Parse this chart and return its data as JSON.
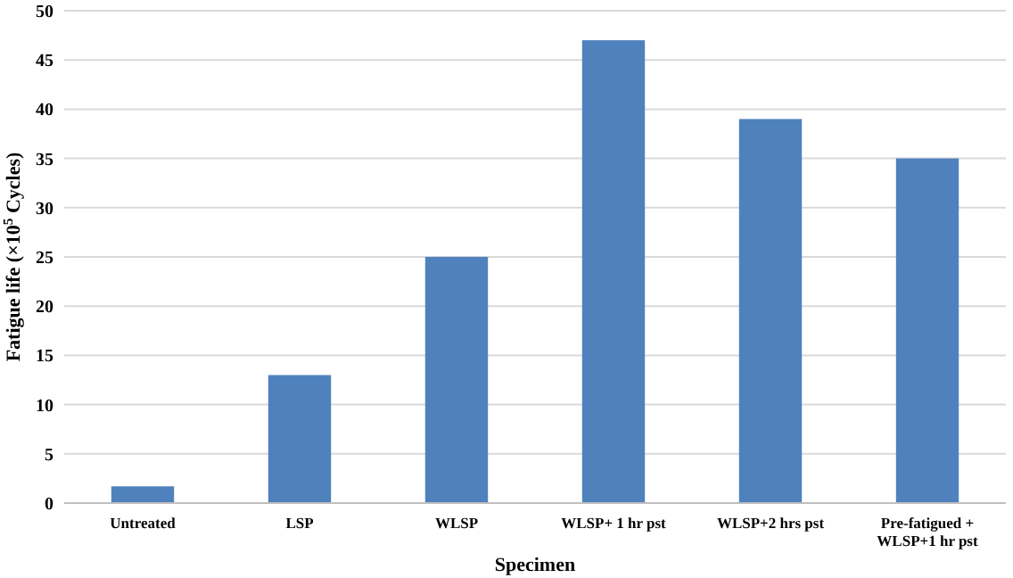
{
  "chart_data": {
    "type": "bar",
    "xlabel": "Specimen",
    "ylabel": "Fatigue life (×10$^{5}$ Cycles)",
    "categories": [
      "Untreated",
      "LSP",
      "WLSP",
      "WLSP+ 1 hr pst",
      "WLSP+2 hrs pst",
      "Pre-fatigued +\nWLSP+1 hr pst"
    ],
    "values": [
      1.7,
      13,
      25,
      47,
      39,
      35
    ],
    "color": "#4f81bd",
    "ylim": [
      0,
      50
    ],
    "yticks": [
      0,
      5,
      10,
      15,
      20,
      25,
      30,
      35,
      40,
      45,
      50
    ],
    "grid": "y"
  }
}
